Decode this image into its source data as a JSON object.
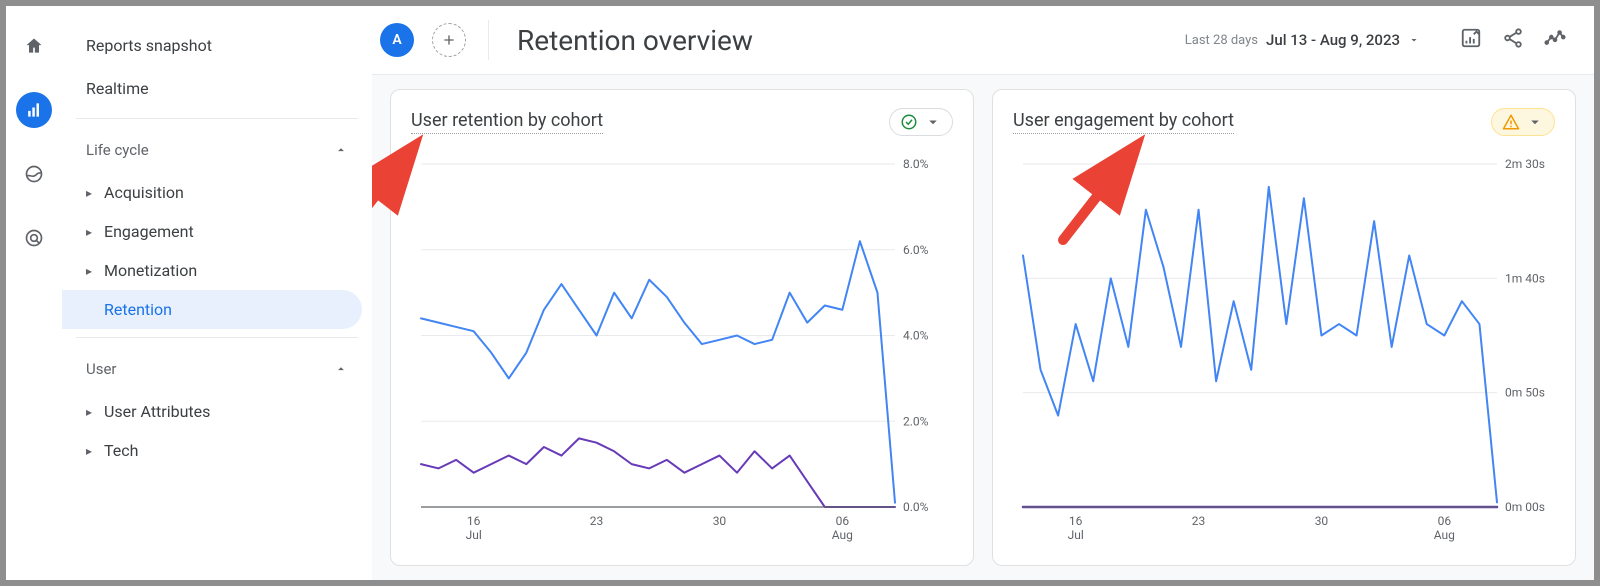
{
  "rail": {
    "items": [
      "home-icon",
      "reports-icon",
      "explore-icon",
      "advertising-icon"
    ],
    "active_index": 1
  },
  "sidebar": {
    "top_links": [
      {
        "label": "Reports snapshot"
      },
      {
        "label": "Realtime"
      }
    ],
    "sections": [
      {
        "label": "Life cycle",
        "expanded": true,
        "items": [
          {
            "label": "Acquisition",
            "has_children": true
          },
          {
            "label": "Engagement",
            "has_children": true
          },
          {
            "label": "Monetization",
            "has_children": true
          },
          {
            "label": "Retention",
            "has_children": false,
            "selected": true
          }
        ]
      },
      {
        "label": "User",
        "expanded": true,
        "items": [
          {
            "label": "User Attributes",
            "has_children": true
          },
          {
            "label": "Tech",
            "has_children": true
          }
        ]
      }
    ]
  },
  "header": {
    "primary_badge": "A",
    "title": "Retention overview",
    "date_prefix": "Last 28 days",
    "date_range": "Jul 13 - Aug 9, 2023"
  },
  "cards": [
    {
      "title": "User retention by cohort",
      "status": "ok",
      "chart": {
        "type": "line",
        "y_axis": {
          "min": 0,
          "max": 8,
          "ticks": [
            0,
            2,
            4,
            6,
            8
          ],
          "tick_labels": [
            "0.0%",
            "2.0%",
            "4.0%",
            "6.0%",
            "8.0%"
          ]
        },
        "x_axis": {
          "ticks": [
            3,
            10,
            17,
            24
          ],
          "labels": [
            [
              "16",
              "Jul"
            ],
            [
              "23",
              ""
            ],
            [
              "30",
              ""
            ],
            [
              "06",
              "Aug"
            ]
          ],
          "count": 28
        },
        "series": [
          {
            "color": "#4285f4",
            "width": 2,
            "values": [
              4.4,
              4.3,
              4.2,
              4.1,
              3.6,
              3.0,
              3.6,
              4.6,
              5.2,
              4.6,
              4.0,
              5.0,
              4.4,
              5.3,
              4.9,
              4.3,
              3.8,
              3.9,
              4.0,
              3.8,
              3.9,
              5.0,
              4.3,
              4.7,
              4.6,
              6.2,
              5.0,
              0.1
            ]
          },
          {
            "color": "#673ab7",
            "width": 2,
            "values": [
              1.0,
              0.9,
              1.1,
              0.8,
              1.0,
              1.2,
              1.0,
              1.4,
              1.2,
              1.6,
              1.5,
              1.3,
              1.0,
              0.9,
              1.1,
              0.8,
              1.0,
              1.2,
              0.8,
              1.3,
              0.9,
              1.2,
              0.6,
              0.0,
              0.0,
              0.0,
              0.0,
              0.0
            ]
          }
        ],
        "grid_color": "#e8eaed",
        "background": "#ffffff"
      },
      "annotation_arrow": true
    },
    {
      "title": "User engagement by cohort",
      "status": "warn",
      "chart": {
        "type": "line",
        "y_axis": {
          "min": 0,
          "max": 150,
          "ticks": [
            0,
            50,
            100,
            150
          ],
          "tick_labels": [
            "0m 00s",
            "0m 50s",
            "1m 40s",
            "2m 30s"
          ]
        },
        "x_axis": {
          "ticks": [
            3,
            10,
            17,
            24
          ],
          "labels": [
            [
              "16",
              "Jul"
            ],
            [
              "23",
              ""
            ],
            [
              "30",
              ""
            ],
            [
              "06",
              "Aug"
            ]
          ],
          "count": 28
        },
        "series": [
          {
            "color": "#4285f4",
            "width": 2,
            "values": [
              110,
              60,
              40,
              80,
              55,
              100,
              70,
              130,
              105,
              70,
              130,
              55,
              90,
              60,
              140,
              80,
              135,
              75,
              80,
              75,
              125,
              70,
              110,
              80,
              75,
              90,
              80,
              2
            ]
          },
          {
            "color": "#673ab7",
            "width": 2.5,
            "values": [
              0,
              0,
              0,
              0,
              0,
              0,
              0,
              0,
              0,
              0,
              0,
              0,
              0,
              0,
              0,
              0,
              0,
              0,
              0,
              0,
              0,
              0,
              0,
              0,
              0,
              0,
              0,
              0
            ]
          }
        ],
        "grid_color": "#e8eaed",
        "background": "#ffffff"
      },
      "annotation_arrow": true
    }
  ],
  "colors": {
    "primary": "#1a73e8",
    "text": "#3c4043",
    "muted": "#5f6368",
    "ok": "#1e8e3e",
    "warn": "#f29900",
    "warn_bg": "#fef7e0"
  }
}
